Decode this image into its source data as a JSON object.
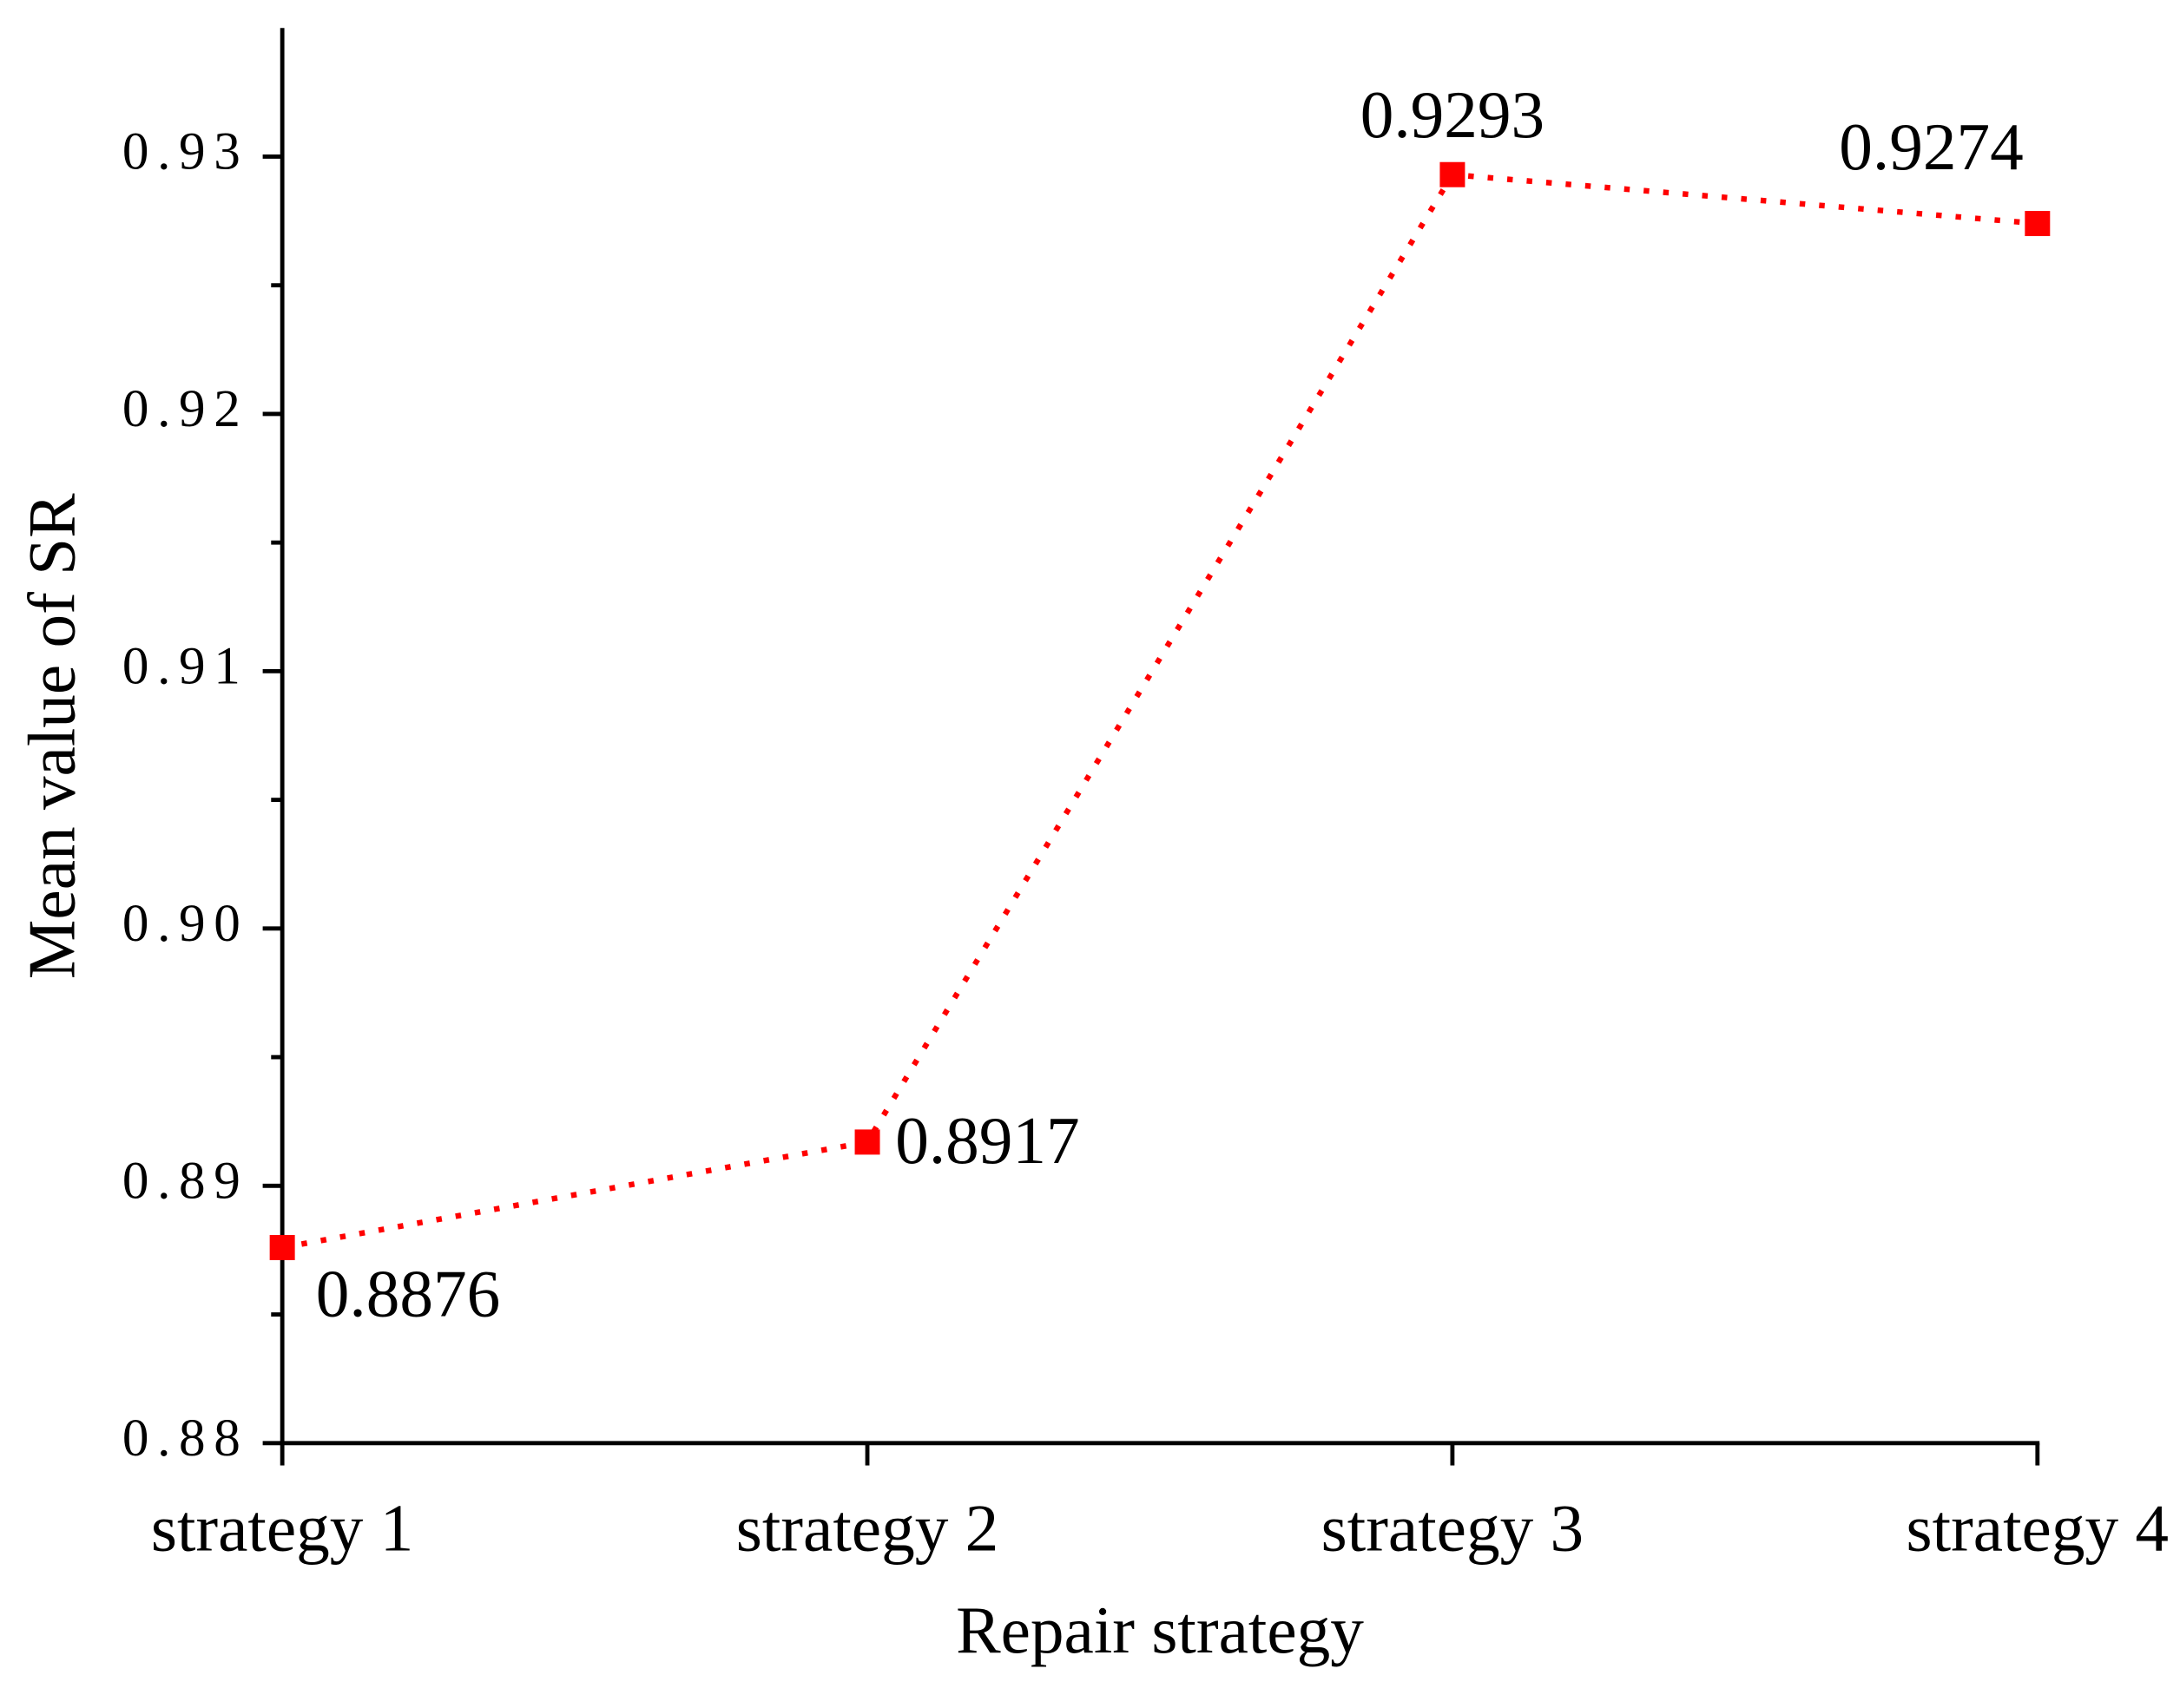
{
  "chart_data": {
    "type": "line",
    "x_label": "Repair strategy",
    "y_label": "Mean value of SR",
    "categories": [
      "strategy 1",
      "strategy 2",
      "strategy 3",
      "strategy 4"
    ],
    "series": [
      {
        "color": "#ff0000",
        "values": [
          0.8876,
          0.8917,
          0.9293,
          0.9274
        ]
      }
    ],
    "ylim": [
      0.88,
      0.935
    ],
    "yticks": [
      0.88,
      0.89,
      {
        "value": 0.9,
        "label": "0.90"
      },
      0.91,
      0.92,
      0.93
    ],
    "yticks_minor": [
      0.885,
      0.895,
      0.905,
      0.915,
      0.925
    ],
    "line_style": "dotted",
    "marker": "square"
  }
}
